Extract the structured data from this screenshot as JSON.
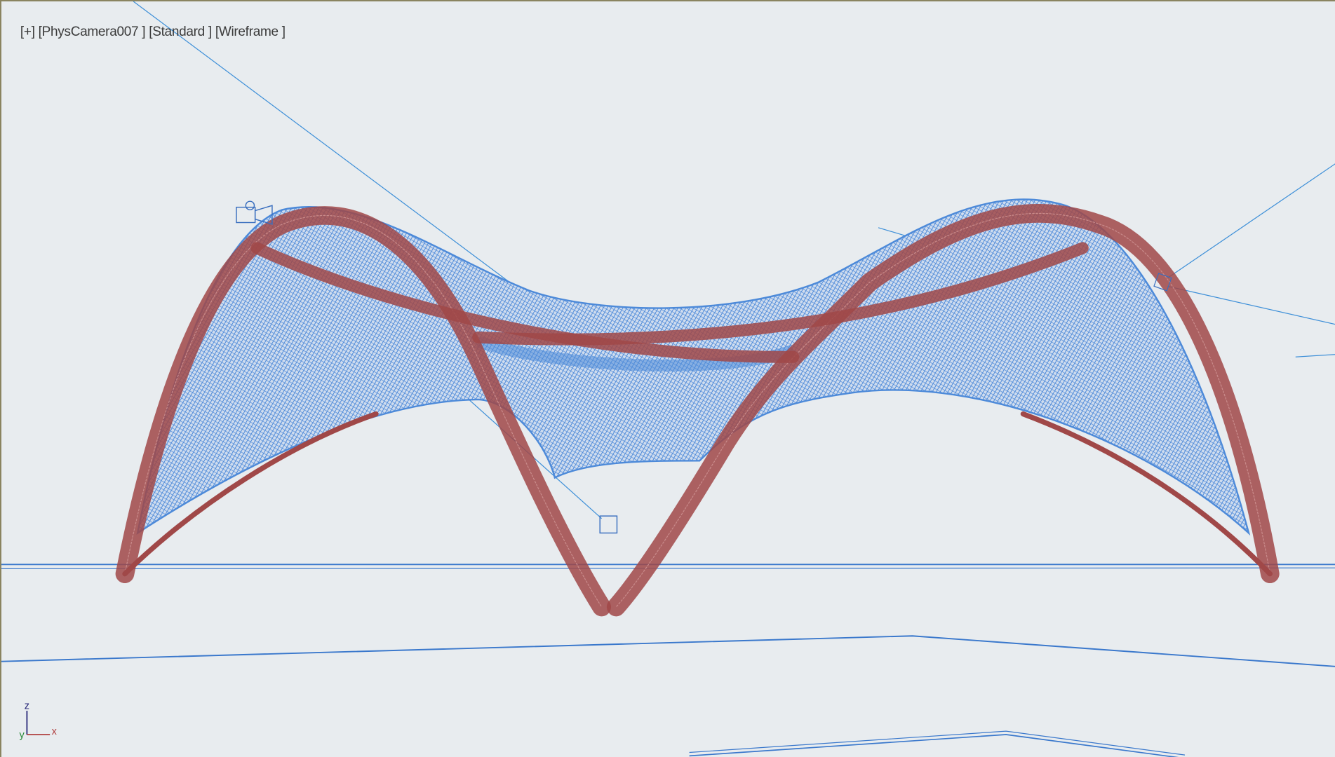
{
  "viewport": {
    "menu_plus": "[+]",
    "camera": "[PhysCamera007 ]",
    "shading_preset": "[Standard ]",
    "display_mode": "[Wireframe ]"
  },
  "axis_gizmo": {
    "z": "z",
    "x": "x",
    "y": "y"
  },
  "colors": {
    "background": "#e8ecef",
    "canopy": "#4d8ad9",
    "arches": "#a04848",
    "helpers": "#3d8fd8"
  }
}
